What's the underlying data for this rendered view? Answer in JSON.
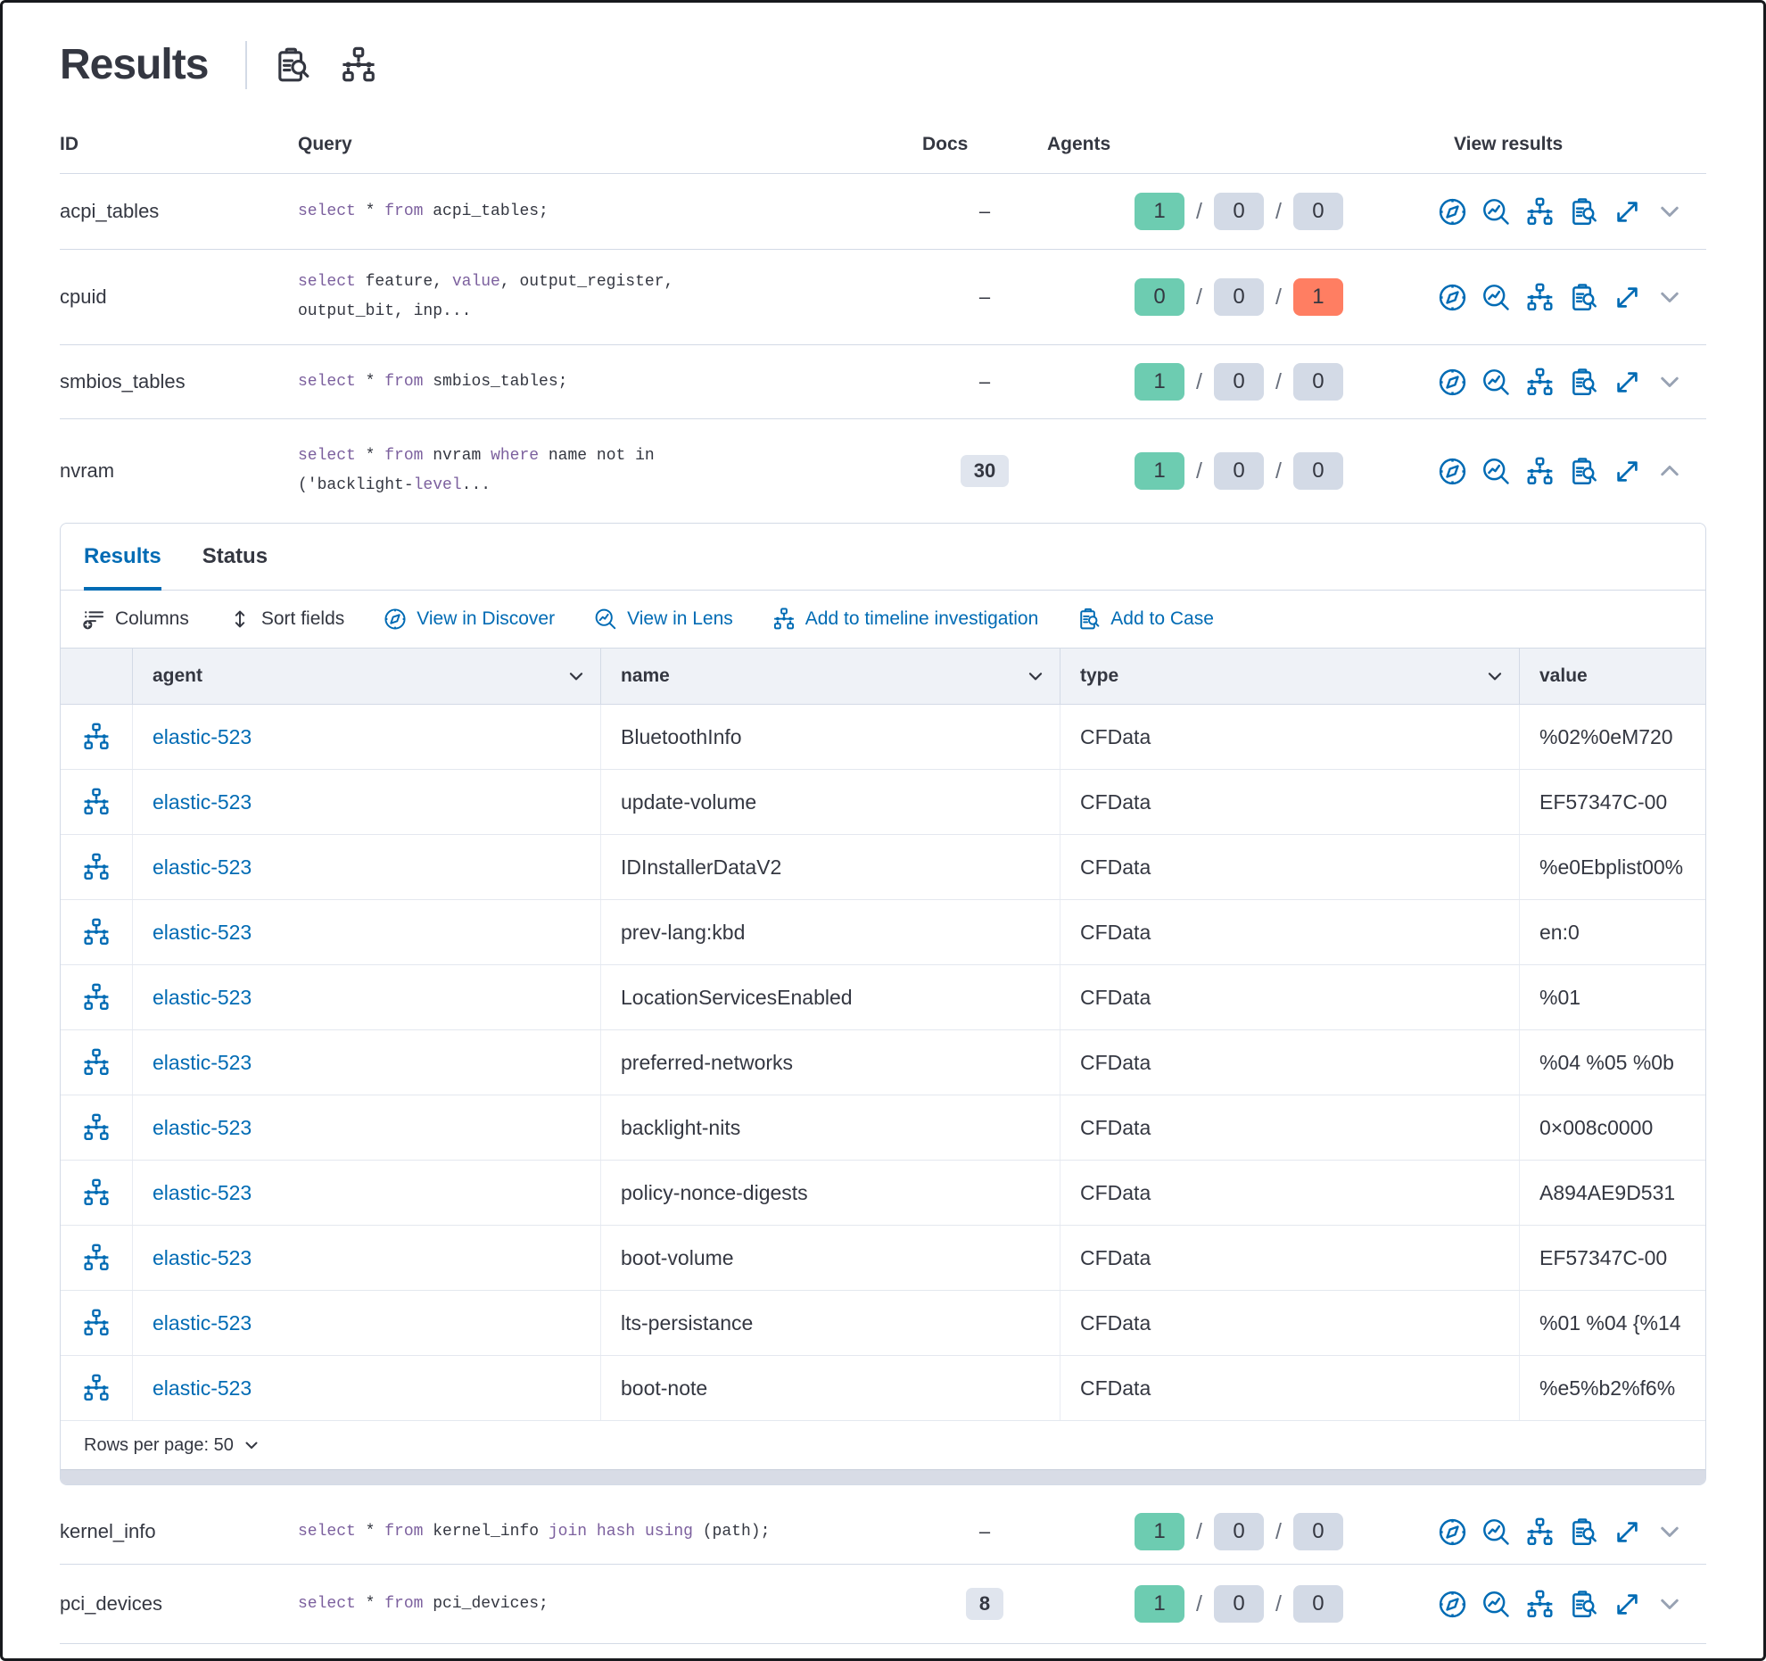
{
  "header": {
    "title": "Results",
    "icons": [
      "inspect-icon",
      "node-tree-icon"
    ]
  },
  "table": {
    "headers": {
      "id": "ID",
      "query": "Query",
      "docs": "Docs",
      "agents": "Agents",
      "view_results": "View results"
    },
    "agents_separator": "/",
    "colors": {
      "success_badge": "#6DCCB1",
      "default_badge": "#D3DAE6",
      "danger_badge": "#FF7E62",
      "keyword": "#7C609E",
      "link": "#006BB4"
    },
    "action_icons": [
      "discover",
      "lens",
      "timeline",
      "case",
      "expand"
    ]
  },
  "queries": [
    {
      "id": "acpi_tables",
      "docs": "–",
      "agents": [
        "1",
        "0",
        "0"
      ],
      "code": [
        [
          [
            "k",
            "select"
          ],
          [
            "p",
            " * "
          ],
          [
            "k",
            "from"
          ],
          [
            "p",
            " acpi_tables;"
          ]
        ]
      ]
    },
    {
      "id": "cpuid",
      "docs": "–",
      "agents": [
        "0",
        "0",
        "1"
      ],
      "code": [
        [
          [
            "k",
            "select"
          ],
          [
            "p",
            " feature, "
          ],
          [
            "k",
            "value"
          ],
          [
            "p",
            ", output_register,"
          ]
        ],
        [
          [
            "p",
            "output_bit, inp..."
          ]
        ]
      ]
    },
    {
      "id": "smbios_tables",
      "docs": "–",
      "agents": [
        "1",
        "0",
        "0"
      ],
      "code": [
        [
          [
            "k",
            "select"
          ],
          [
            "p",
            " * "
          ],
          [
            "k",
            "from"
          ],
          [
            "p",
            " smbios_tables;"
          ]
        ]
      ]
    },
    {
      "id": "nvram",
      "docs": "30",
      "agents": [
        "1",
        "0",
        "0"
      ],
      "code": [
        [
          [
            "k",
            "select"
          ],
          [
            "p",
            " * "
          ],
          [
            "k",
            "from"
          ],
          [
            "p",
            " nvram "
          ],
          [
            "k",
            "where"
          ],
          [
            "p",
            " name not in"
          ]
        ],
        [
          [
            "p",
            "('backlight-"
          ],
          [
            "k",
            "level"
          ],
          [
            "p",
            "..."
          ]
        ]
      ]
    },
    {
      "id": "kernel_info",
      "docs": "–",
      "agents": [
        "1",
        "0",
        "0"
      ],
      "code": [
        [
          [
            "k",
            "select"
          ],
          [
            "p",
            " * "
          ],
          [
            "k",
            "from"
          ],
          [
            "p",
            " kernel_info "
          ],
          [
            "k",
            "join"
          ],
          [
            "p",
            " "
          ],
          [
            "k",
            "hash"
          ],
          [
            "p",
            " "
          ],
          [
            "k",
            "using"
          ],
          [
            "p",
            " (path);"
          ]
        ]
      ]
    },
    {
      "id": "pci_devices",
      "docs": "8",
      "agents": [
        "1",
        "0",
        "0"
      ],
      "code": [
        [
          [
            "k",
            "select"
          ],
          [
            "p",
            " * "
          ],
          [
            "k",
            "from"
          ],
          [
            "p",
            " pci_devices;"
          ]
        ]
      ]
    }
  ],
  "panel": {
    "tabs": [
      {
        "label": "Results"
      },
      {
        "label": "Status"
      }
    ],
    "toolbar": [
      {
        "label": "Columns"
      },
      {
        "label": "Sort fields"
      },
      {
        "label": "View in Discover"
      },
      {
        "label": "View in Lens"
      },
      {
        "label": "Add to timeline investigation"
      },
      {
        "label": "Add to Case"
      }
    ],
    "grid": {
      "columns": {
        "agent": "agent",
        "name": "name",
        "type": "type",
        "value": "value"
      },
      "rows": [
        {
          "agent": "elastic-523",
          "name": "BluetoothInfo",
          "type": "CFData",
          "value": "%02%0eM720"
        },
        {
          "agent": "elastic-523",
          "name": "update-volume",
          "type": "CFData",
          "value": "EF57347C-00"
        },
        {
          "agent": "elastic-523",
          "name": "IDInstallerDataV2",
          "type": "CFData",
          "value": "%e0Ebplist00%"
        },
        {
          "agent": "elastic-523",
          "name": "prev-lang:kbd",
          "type": "CFData",
          "value": "en:0"
        },
        {
          "agent": "elastic-523",
          "name": "LocationServicesEnabled",
          "type": "CFData",
          "value": "%01"
        },
        {
          "agent": "elastic-523",
          "name": "preferred-networks",
          "type": "CFData",
          "value": "%04 %05 %0b"
        },
        {
          "agent": "elastic-523",
          "name": "backlight-nits",
          "type": "CFData",
          "value": "0×008c0000"
        },
        {
          "agent": "elastic-523",
          "name": "policy-nonce-digests",
          "type": "CFData",
          "value": "A894AE9D531"
        },
        {
          "agent": "elastic-523",
          "name": "boot-volume",
          "type": "CFData",
          "value": "EF57347C-00"
        },
        {
          "agent": "elastic-523",
          "name": "lts-persistance",
          "type": "CFData",
          "value": "%01 %04 {%14"
        },
        {
          "agent": "elastic-523",
          "name": "boot-note",
          "type": "CFData",
          "value": "%e5%b2%f6%"
        }
      ]
    },
    "footer": {
      "rows_per_page": "Rows per page: 50"
    }
  }
}
